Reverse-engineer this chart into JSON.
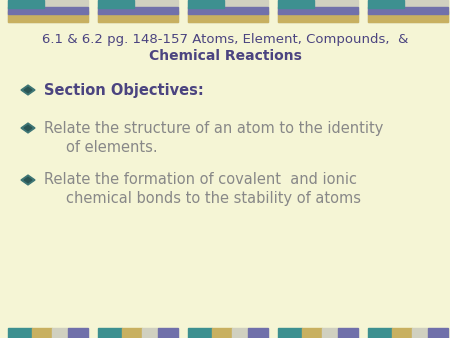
{
  "background_color": "#f5f5d5",
  "title_line1": "6.1 & 6.2 pg. 148-157 Atoms, Element, Compounds,  &",
  "title_line2": "Chemical Reactions",
  "title_color": "#4b4480",
  "title_fontsize": 9.5,
  "title_line2_fontsize": 10,
  "bullet_text_color": "#888888",
  "section_objectives_text": "Section Objectives:",
  "section_objectives_color": "#4b4480",
  "bullet1_line1": "Relate the structure of an atom to the identity",
  "bullet1_line2": "of elements.",
  "bullet2_line1": "Relate the formation of covalent  and ionic",
  "bullet2_line2": "chemical bonds to the stability of atoms",
  "body_fontsize": 10.5,
  "bar_color_teal": "#3d9090",
  "bar_color_purple": "#7070aa",
  "bar_color_gold": "#c8b060",
  "bar_color_lightgray": "#d0d0c0",
  "num_bar_groups": 5
}
